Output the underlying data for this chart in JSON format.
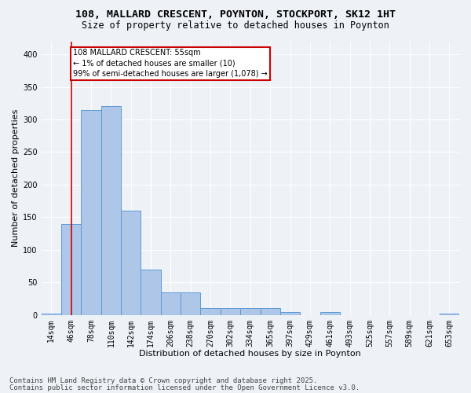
{
  "title1": "108, MALLARD CRESCENT, POYNTON, STOCKPORT, SK12 1HT",
  "title2": "Size of property relative to detached houses in Poynton",
  "xlabel": "Distribution of detached houses by size in Poynton",
  "ylabel": "Number of detached properties",
  "bin_labels": [
    "14sqm",
    "46sqm",
    "78sqm",
    "110sqm",
    "142sqm",
    "174sqm",
    "206sqm",
    "238sqm",
    "270sqm",
    "302sqm",
    "334sqm",
    "365sqm",
    "397sqm",
    "429sqm",
    "461sqm",
    "493sqm",
    "525sqm",
    "557sqm",
    "589sqm",
    "621sqm",
    "653sqm"
  ],
  "bar_heights": [
    2,
    140,
    315,
    320,
    160,
    70,
    35,
    35,
    10,
    10,
    10,
    10,
    5,
    0,
    5,
    0,
    0,
    0,
    0,
    0,
    2
  ],
  "bar_color": "#aec6e8",
  "bar_edge_color": "#5b9bd5",
  "annotation_line_bin": 1,
  "annotation_box_text": "108 MALLARD CRESCENT: 55sqm\n← 1% of detached houses are smaller (10)\n99% of semi-detached houses are larger (1,078) →",
  "annotation_box_color": "#ffffff",
  "annotation_box_edge_color": "#cc0000",
  "annotation_line_color": "#cc0000",
  "ylim": [
    0,
    420
  ],
  "yticks": [
    0,
    50,
    100,
    150,
    200,
    250,
    300,
    350,
    400
  ],
  "background_color": "#eef2f7",
  "grid_color": "#ffffff",
  "footer1": "Contains HM Land Registry data © Crown copyright and database right 2025.",
  "footer2": "Contains public sector information licensed under the Open Government Licence v3.0.",
  "title_fontsize": 9.5,
  "subtitle_fontsize": 8.5,
  "axis_label_fontsize": 8,
  "tick_fontsize": 7,
  "annotation_fontsize": 7,
  "footer_fontsize": 6.5
}
